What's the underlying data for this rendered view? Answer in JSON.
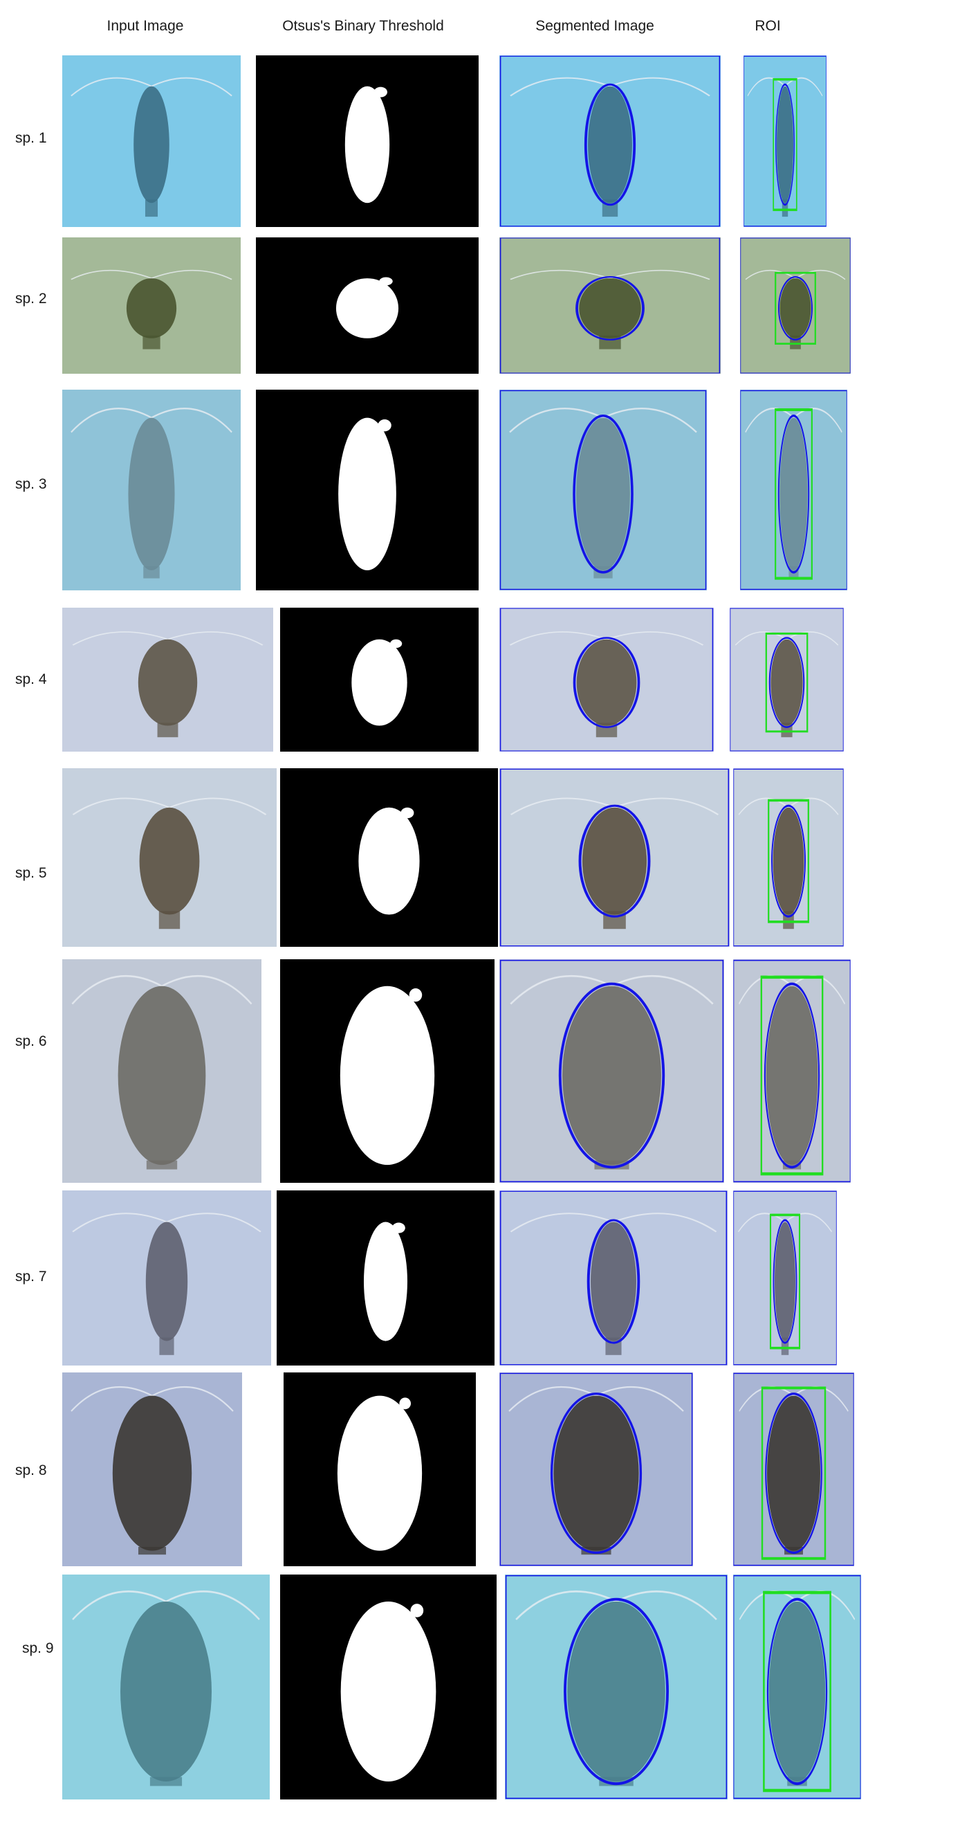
{
  "columns": [
    "Input Image",
    "Otsus's Binary Threshold",
    "Segmented Image",
    "ROI"
  ],
  "rows": [
    {
      "label": "sp. 1",
      "bg": "#7ec9e8",
      "body": "#3c6f86",
      "shape": "slim"
    },
    {
      "label": "sp. 2",
      "bg": "#a4b998",
      "body": "#4a5530",
      "shape": "round"
    },
    {
      "label": "sp. 3",
      "bg": "#8fc3d8",
      "body": "#6a8c98",
      "shape": "long"
    },
    {
      "label": "sp. 4",
      "bg": "#c7cfe1",
      "body": "#5d5548",
      "shape": "oval"
    },
    {
      "label": "sp. 5",
      "bg": "#c6d1de",
      "body": "#5a5040",
      "shape": "oval"
    },
    {
      "label": "sp. 6",
      "bg": "#c0c8d6",
      "body": "#6d6b66",
      "shape": "big"
    },
    {
      "label": "sp. 7",
      "bg": "#bdc9e1",
      "body": "#5e6170",
      "shape": "slim"
    },
    {
      "label": "sp. 8",
      "bg": "#a9b5d4",
      "body": "#3b3733",
      "shape": "big"
    },
    {
      "label": "sp. 9",
      "bg": "#8ed0e0",
      "body": "#4a7f8c",
      "shape": "big"
    }
  ],
  "colors": {
    "threshold_bg": "#000000",
    "threshold_fg": "#ffffff",
    "contour": "#1414e6",
    "roi_box": "#22dd22"
  }
}
